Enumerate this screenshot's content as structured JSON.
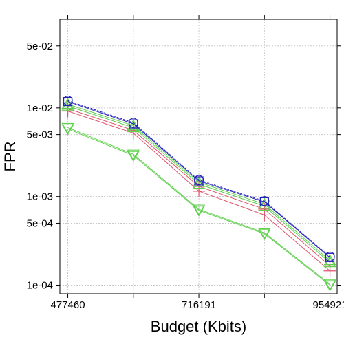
{
  "chart_data": {
    "type": "line",
    "xlabel": "Budget (Kbits)",
    "ylabel": "FPR",
    "yscale": "log",
    "xlim": [
      463000,
      968000
    ],
    "ylim": [
      8e-05,
      0.1
    ],
    "x_ticks": [
      477460,
      596825,
      716191,
      835556,
      954921
    ],
    "x_tick_labels": [
      "477460",
      "",
      "716191",
      "",
      "954921"
    ],
    "y_ticks": [
      0.05,
      0.01,
      0.005,
      0.001,
      0.0005,
      0.0001
    ],
    "y_tick_labels": [
      "5e-02",
      "1e-02",
      "5e-03",
      "1e-03",
      "5e-04",
      "1e-04"
    ],
    "grid": true,
    "x": [
      477460,
      596825,
      716191,
      835556,
      954921
    ],
    "series": [
      {
        "marker": "triangle-down",
        "color": "#61d04f",
        "dash": "",
        "values": [
          0.006,
          0.003,
          0.00072,
          0.00039,
          0.000103
        ]
      },
      {
        "marker": "triangle-down",
        "color": "#61d04f",
        "dash": "",
        "values": [
          0.0058,
          0.0029,
          0.0007,
          0.00038,
          0.0001
        ]
      },
      {
        "marker": "plus",
        "color": "#df536b",
        "dash": "",
        "values": [
          0.0092,
          0.0052,
          0.00115,
          0.00062,
          0.000145
        ]
      },
      {
        "marker": "plus",
        "color": "#df536b",
        "dash": "",
        "values": [
          0.0098,
          0.0056,
          0.0013,
          0.00072,
          0.000165
        ]
      },
      {
        "marker": "triangle-up",
        "color": "#61d04f",
        "dash": "",
        "values": [
          0.0105,
          0.006,
          0.00138,
          0.00078,
          0.00018
        ]
      },
      {
        "marker": "triangle-up",
        "color": "#61d04f",
        "dash": "",
        "values": [
          0.011,
          0.0063,
          0.00145,
          0.00082,
          0.00019
        ]
      },
      {
        "marker": "square",
        "color": "#2222bb",
        "dash": "",
        "values": [
          0.0118,
          0.0066,
          0.0015,
          0.00087,
          0.000205
        ]
      },
      {
        "marker": "circle",
        "color": "#2222bb",
        "dash": "3,2",
        "values": [
          0.0121,
          0.0068,
          0.00154,
          0.00089,
          0.00021
        ]
      }
    ]
  }
}
